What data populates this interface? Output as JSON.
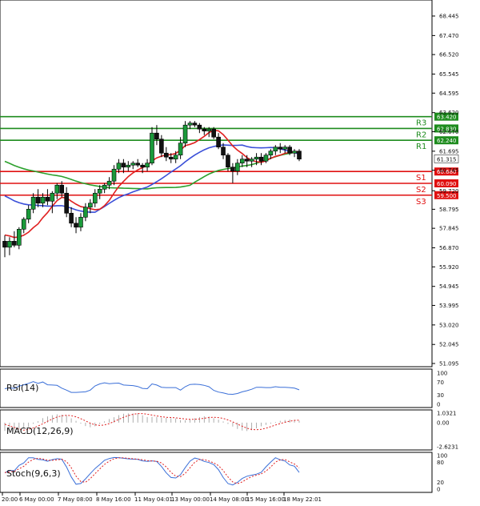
{
  "chart_data": {
    "type": "candlestick",
    "instrument_last_price": "61.315",
    "price_axis_ticks": [
      "68.445",
      "67.470",
      "66.520",
      "65.545",
      "64.595",
      "63.620",
      "62.670",
      "61.695",
      "60.745",
      "59.720",
      "58.795",
      "57.845",
      "56.870",
      "55.920",
      "54.945",
      "53.995",
      "53.020",
      "52.045",
      "51.095"
    ],
    "price_range": [
      51.095,
      68.445
    ],
    "time_labels": [
      "20:00",
      "6 May 00:00",
      "7 May 08:00",
      "8 May 16:00",
      "11 May 04:01",
      "13 May 00:00",
      "14 May 08:00",
      "15 May 16:00",
      "18 May 22:01"
    ],
    "levels": [
      {
        "name": "R3",
        "value": 63.42,
        "label": "63.420",
        "color": "#1e8c1e"
      },
      {
        "name": "R2",
        "value": 62.83,
        "label": "62.830",
        "color": "#1e8c1e"
      },
      {
        "name": "R1",
        "value": 62.24,
        "label": "62.240",
        "color": "#1e8c1e"
      },
      {
        "name": "S1",
        "value": 60.68,
        "label": "60.680",
        "color": "#e01010"
      },
      {
        "name": "S2",
        "value": 60.09,
        "label": "60.090",
        "color": "#e01010"
      },
      {
        "name": "S3",
        "value": 59.5,
        "label": "59.500",
        "color": "#e01010"
      }
    ],
    "candles": [
      {
        "o": 57.2,
        "h": 57.5,
        "l": 56.4,
        "c": 56.9
      },
      {
        "o": 56.9,
        "h": 57.4,
        "l": 56.5,
        "c": 57.2
      },
      {
        "o": 57.2,
        "h": 57.7,
        "l": 56.9,
        "c": 57.0
      },
      {
        "o": 57.0,
        "h": 57.9,
        "l": 56.8,
        "c": 57.8
      },
      {
        "o": 57.8,
        "h": 58.4,
        "l": 57.6,
        "c": 58.3
      },
      {
        "o": 58.3,
        "h": 59.0,
        "l": 58.1,
        "c": 58.8
      },
      {
        "o": 58.8,
        "h": 59.6,
        "l": 58.6,
        "c": 59.4
      },
      {
        "o": 59.4,
        "h": 59.8,
        "l": 58.9,
        "c": 59.1
      },
      {
        "o": 59.1,
        "h": 59.6,
        "l": 58.9,
        "c": 59.4
      },
      {
        "o": 59.4,
        "h": 59.8,
        "l": 59.0,
        "c": 59.2
      },
      {
        "o": 59.2,
        "h": 59.7,
        "l": 58.6,
        "c": 59.6
      },
      {
        "o": 59.6,
        "h": 60.1,
        "l": 59.3,
        "c": 60.0
      },
      {
        "o": 60.0,
        "h": 60.2,
        "l": 59.4,
        "c": 59.6
      },
      {
        "o": 59.6,
        "h": 59.9,
        "l": 58.4,
        "c": 58.6
      },
      {
        "o": 58.6,
        "h": 58.9,
        "l": 57.9,
        "c": 58.1
      },
      {
        "o": 58.1,
        "h": 58.4,
        "l": 57.6,
        "c": 57.9
      },
      {
        "o": 57.9,
        "h": 58.6,
        "l": 57.7,
        "c": 58.4
      },
      {
        "o": 58.4,
        "h": 59.1,
        "l": 58.2,
        "c": 58.9
      },
      {
        "o": 58.9,
        "h": 59.3,
        "l": 58.6,
        "c": 59.1
      },
      {
        "o": 59.1,
        "h": 59.8,
        "l": 58.9,
        "c": 59.6
      },
      {
        "o": 59.6,
        "h": 60.0,
        "l": 59.3,
        "c": 59.8
      },
      {
        "o": 59.8,
        "h": 60.1,
        "l": 59.6,
        "c": 60.0
      },
      {
        "o": 60.0,
        "h": 60.4,
        "l": 59.8,
        "c": 60.2
      },
      {
        "o": 60.2,
        "h": 61.0,
        "l": 60.0,
        "c": 60.8
      },
      {
        "o": 60.8,
        "h": 61.3,
        "l": 60.6,
        "c": 61.1
      },
      {
        "o": 61.1,
        "h": 61.3,
        "l": 60.6,
        "c": 60.9
      },
      {
        "o": 60.9,
        "h": 61.2,
        "l": 60.7,
        "c": 61.0
      },
      {
        "o": 61.0,
        "h": 61.2,
        "l": 60.8,
        "c": 61.1
      },
      {
        "o": 61.1,
        "h": 61.3,
        "l": 60.9,
        "c": 61.0
      },
      {
        "o": 61.0,
        "h": 61.1,
        "l": 60.6,
        "c": 60.9
      },
      {
        "o": 60.9,
        "h": 61.3,
        "l": 60.7,
        "c": 61.1
      },
      {
        "o": 61.1,
        "h": 62.9,
        "l": 61.0,
        "c": 62.6
      },
      {
        "o": 62.6,
        "h": 63.0,
        "l": 62.0,
        "c": 62.3
      },
      {
        "o": 62.3,
        "h": 62.5,
        "l": 61.4,
        "c": 61.6
      },
      {
        "o": 61.6,
        "h": 61.9,
        "l": 61.2,
        "c": 61.4
      },
      {
        "o": 61.4,
        "h": 61.6,
        "l": 61.1,
        "c": 61.3
      },
      {
        "o": 61.3,
        "h": 61.7,
        "l": 61.1,
        "c": 61.5
      },
      {
        "o": 61.5,
        "h": 62.4,
        "l": 61.3,
        "c": 62.1
      },
      {
        "o": 62.1,
        "h": 63.2,
        "l": 61.9,
        "c": 63.0
      },
      {
        "o": 63.0,
        "h": 63.2,
        "l": 62.8,
        "c": 63.1
      },
      {
        "o": 63.1,
        "h": 63.2,
        "l": 62.9,
        "c": 63.0
      },
      {
        "o": 63.0,
        "h": 63.1,
        "l": 62.6,
        "c": 62.8
      },
      {
        "o": 62.8,
        "h": 62.9,
        "l": 62.5,
        "c": 62.7
      },
      {
        "o": 62.7,
        "h": 62.9,
        "l": 62.4,
        "c": 62.8
      },
      {
        "o": 62.8,
        "h": 62.9,
        "l": 62.3,
        "c": 62.4
      },
      {
        "o": 62.4,
        "h": 62.6,
        "l": 61.8,
        "c": 61.9
      },
      {
        "o": 61.9,
        "h": 62.1,
        "l": 61.3,
        "c": 61.5
      },
      {
        "o": 61.5,
        "h": 61.6,
        "l": 60.7,
        "c": 60.9
      },
      {
        "o": 60.9,
        "h": 61.1,
        "l": 60.1,
        "c": 60.7
      },
      {
        "o": 60.7,
        "h": 61.3,
        "l": 60.5,
        "c": 61.1
      },
      {
        "o": 61.1,
        "h": 61.5,
        "l": 60.9,
        "c": 61.3
      },
      {
        "o": 61.3,
        "h": 61.5,
        "l": 60.9,
        "c": 61.2
      },
      {
        "o": 61.2,
        "h": 61.4,
        "l": 60.9,
        "c": 61.3
      },
      {
        "o": 61.3,
        "h": 61.6,
        "l": 61.0,
        "c": 61.4
      },
      {
        "o": 61.4,
        "h": 61.6,
        "l": 61.0,
        "c": 61.2
      },
      {
        "o": 61.2,
        "h": 61.6,
        "l": 61.1,
        "c": 61.5
      },
      {
        "o": 61.5,
        "h": 61.8,
        "l": 61.3,
        "c": 61.7
      },
      {
        "o": 61.7,
        "h": 62.0,
        "l": 61.5,
        "c": 61.9
      },
      {
        "o": 61.9,
        "h": 62.1,
        "l": 61.6,
        "c": 61.8
      },
      {
        "o": 61.8,
        "h": 62.0,
        "l": 61.6,
        "c": 61.9
      },
      {
        "o": 61.9,
        "h": 62.0,
        "l": 61.5,
        "c": 61.6
      },
      {
        "o": 61.6,
        "h": 61.8,
        "l": 61.4,
        "c": 61.7
      },
      {
        "o": 61.7,
        "h": 61.8,
        "l": 61.2,
        "c": 61.3
      }
    ],
    "indicators": {
      "rsi": {
        "label": "RSI(14)",
        "scale": [
          "100",
          "70",
          "30",
          "0"
        ]
      },
      "macd": {
        "label": "MACD(12,26,9)",
        "scale": [
          "1.0321",
          "0.00",
          "-2.6231"
        ]
      },
      "stoch": {
        "label": "Stoch(9,6,3)",
        "scale": [
          "100",
          "80",
          "20",
          "0"
        ]
      }
    }
  }
}
